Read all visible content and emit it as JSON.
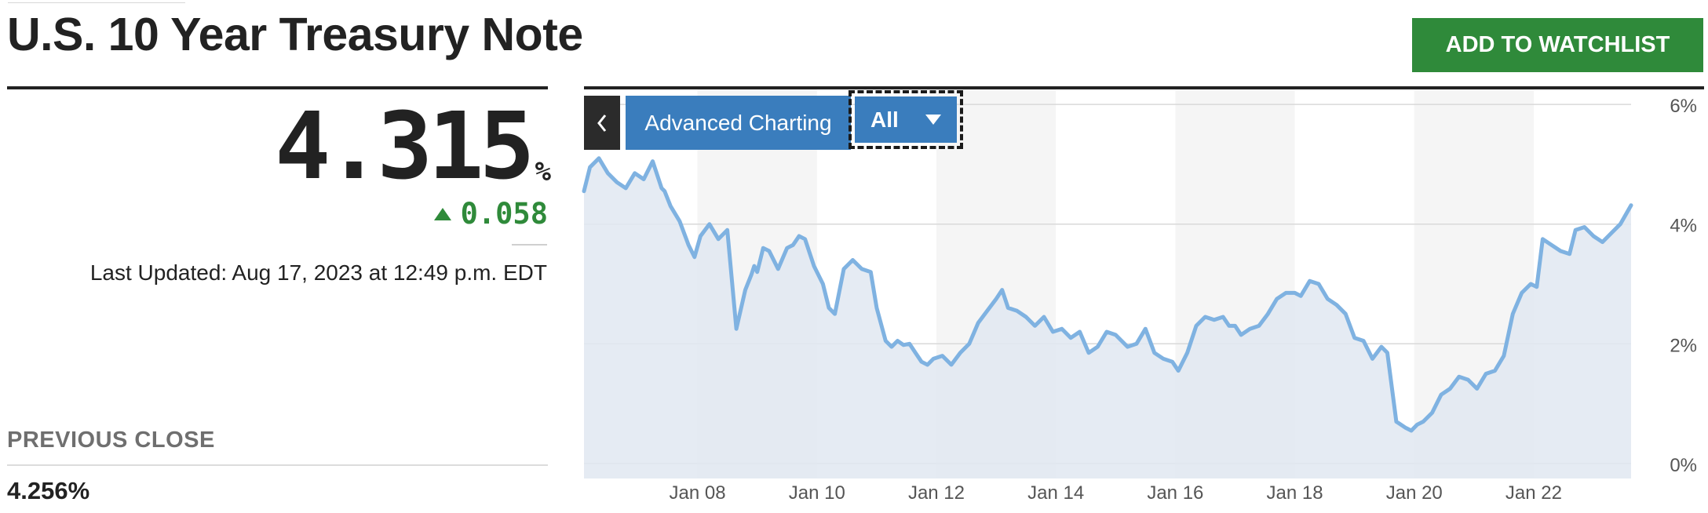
{
  "header": {
    "title": "U.S. 10 Year Treasury Note",
    "watchlist_label": "ADD TO WATCHLIST"
  },
  "quote": {
    "price": "4.315",
    "unit": "%",
    "change": "0.058",
    "direction": "up",
    "last_updated": "Last Updated: Aug 17, 2023 at 12:49 p.m. EDT"
  },
  "previous_close": {
    "label": "PREVIOUS CLOSE",
    "value": "4.256%"
  },
  "chart_controls": {
    "back_icon": "chevron-left-icon",
    "advanced_label": "Advanced Charting",
    "range_value": "All",
    "range_icon": "chevron-down-icon"
  },
  "colors": {
    "accent_blue": "#3a7dbd",
    "positive_green": "#2f8a3a",
    "line_blue": "#7fb2e1",
    "area_fill": "#e1e8f1"
  },
  "chart_data": {
    "type": "area",
    "xlabel": "",
    "ylabel": "",
    "title": "",
    "x_ticks": [
      "Jan 08",
      "Jan 10",
      "Jan 12",
      "Jan 14",
      "Jan 16",
      "Jan 18",
      "Jan 20",
      "Jan 22"
    ],
    "x_tick_years": [
      2008,
      2010,
      2012,
      2014,
      2016,
      2018,
      2020,
      2022
    ],
    "y_ticks": [
      "0%",
      "2%",
      "4%",
      "6%"
    ],
    "y_tick_values": [
      0,
      2,
      4,
      6
    ],
    "xlim": [
      2006.1,
      2023.63
    ],
    "ylim": [
      -0.25,
      6.25
    ],
    "grid": true,
    "axis_side": "right",
    "series": [
      {
        "x": [
          2006.1,
          2006.2,
          2006.35,
          2006.5,
          2006.65,
          2006.8,
          2006.95,
          2007.1,
          2007.25,
          2007.4,
          2007.45,
          2007.55,
          2007.7,
          2007.85,
          2007.95,
          2008.05,
          2008.2,
          2008.35,
          2008.5,
          2008.65,
          2008.8,
          2008.9,
          2008.95,
          2009.0,
          2009.1,
          2009.2,
          2009.35,
          2009.5,
          2009.6,
          2009.7,
          2009.8,
          2009.95,
          2010.1,
          2010.2,
          2010.3,
          2010.45,
          2010.6,
          2010.75,
          2010.9,
          2011.0,
          2011.15,
          2011.25,
          2011.35,
          2011.45,
          2011.55,
          2011.65,
          2011.75,
          2011.85,
          2011.95,
          2012.1,
          2012.25,
          2012.4,
          2012.55,
          2012.7,
          2012.85,
          2013.0,
          2013.1,
          2013.2,
          2013.35,
          2013.5,
          2013.65,
          2013.8,
          2013.95,
          2014.1,
          2014.25,
          2014.4,
          2014.55,
          2014.7,
          2014.85,
          2015.0,
          2015.1,
          2015.2,
          2015.35,
          2015.5,
          2015.65,
          2015.8,
          2015.95,
          2016.05,
          2016.2,
          2016.35,
          2016.5,
          2016.65,
          2016.8,
          2016.9,
          2017.0,
          2017.1,
          2017.25,
          2017.4,
          2017.55,
          2017.7,
          2017.85,
          2018.0,
          2018.1,
          2018.25,
          2018.4,
          2018.55,
          2018.7,
          2018.85,
          2019.0,
          2019.15,
          2019.3,
          2019.45,
          2019.55,
          2019.7,
          2019.85,
          2019.95,
          2020.05,
          2020.15,
          2020.3,
          2020.45,
          2020.6,
          2020.75,
          2020.9,
          2021.05,
          2021.2,
          2021.35,
          2021.5,
          2021.65,
          2021.8,
          2021.95,
          2022.05,
          2022.15,
          2022.3,
          2022.45,
          2022.6,
          2022.7,
          2022.85,
          2023.0,
          2023.15,
          2023.3,
          2023.45,
          2023.63
        ],
        "values": [
          4.55,
          4.95,
          5.1,
          4.85,
          4.7,
          4.6,
          4.85,
          4.75,
          5.05,
          4.6,
          4.55,
          4.3,
          4.05,
          3.65,
          3.45,
          3.8,
          4.0,
          3.75,
          3.9,
          2.25,
          2.9,
          3.15,
          3.3,
          3.2,
          3.6,
          3.55,
          3.25,
          3.6,
          3.65,
          3.8,
          3.75,
          3.3,
          3.0,
          2.6,
          2.5,
          3.25,
          3.4,
          3.25,
          3.2,
          2.6,
          2.05,
          1.95,
          2.05,
          1.98,
          2.0,
          1.85,
          1.7,
          1.65,
          1.75,
          1.8,
          1.65,
          1.85,
          2.0,
          2.35,
          2.55,
          2.75,
          2.9,
          2.6,
          2.55,
          2.45,
          2.3,
          2.45,
          2.2,
          2.25,
          2.1,
          2.2,
          1.85,
          1.95,
          2.2,
          2.15,
          2.05,
          1.95,
          2.0,
          2.25,
          1.85,
          1.75,
          1.7,
          1.55,
          1.85,
          2.3,
          2.45,
          2.4,
          2.45,
          2.3,
          2.3,
          2.15,
          2.25,
          2.3,
          2.5,
          2.75,
          2.85,
          2.85,
          2.8,
          3.05,
          3.0,
          2.75,
          2.65,
          2.5,
          2.1,
          2.05,
          1.75,
          1.95,
          1.85,
          0.7,
          0.6,
          0.55,
          0.65,
          0.7,
          0.85,
          1.15,
          1.25,
          1.45,
          1.4,
          1.25,
          1.5,
          1.55,
          1.8,
          2.5,
          2.85,
          3.0,
          2.95,
          3.75,
          3.65,
          3.55,
          3.5,
          3.9,
          3.95,
          3.8,
          3.7,
          3.85,
          4.0,
          4.315
        ]
      }
    ]
  }
}
